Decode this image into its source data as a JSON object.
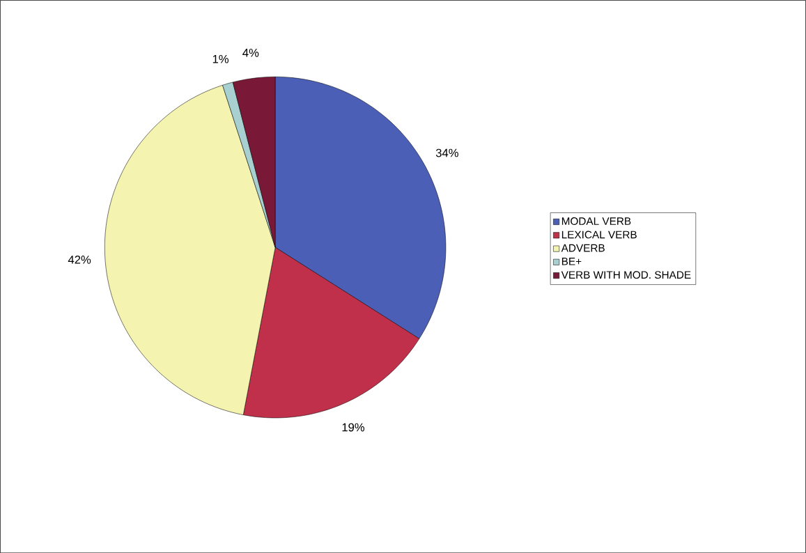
{
  "chart_data": {
    "type": "pie",
    "categories": [
      "MODAL VERB",
      "LEXICAL VERB",
      "ADVERB",
      "BE+",
      "VERB WITH MOD. SHADE"
    ],
    "values": [
      34,
      19,
      42,
      1,
      4
    ],
    "value_labels": [
      "34%",
      "19%",
      "42%",
      "1%",
      "4%"
    ],
    "colors": [
      "#4a5fb5",
      "#c0304a",
      "#f5f3b0",
      "#a8d0d0",
      "#7a1838"
    ],
    "legend": "right"
  }
}
